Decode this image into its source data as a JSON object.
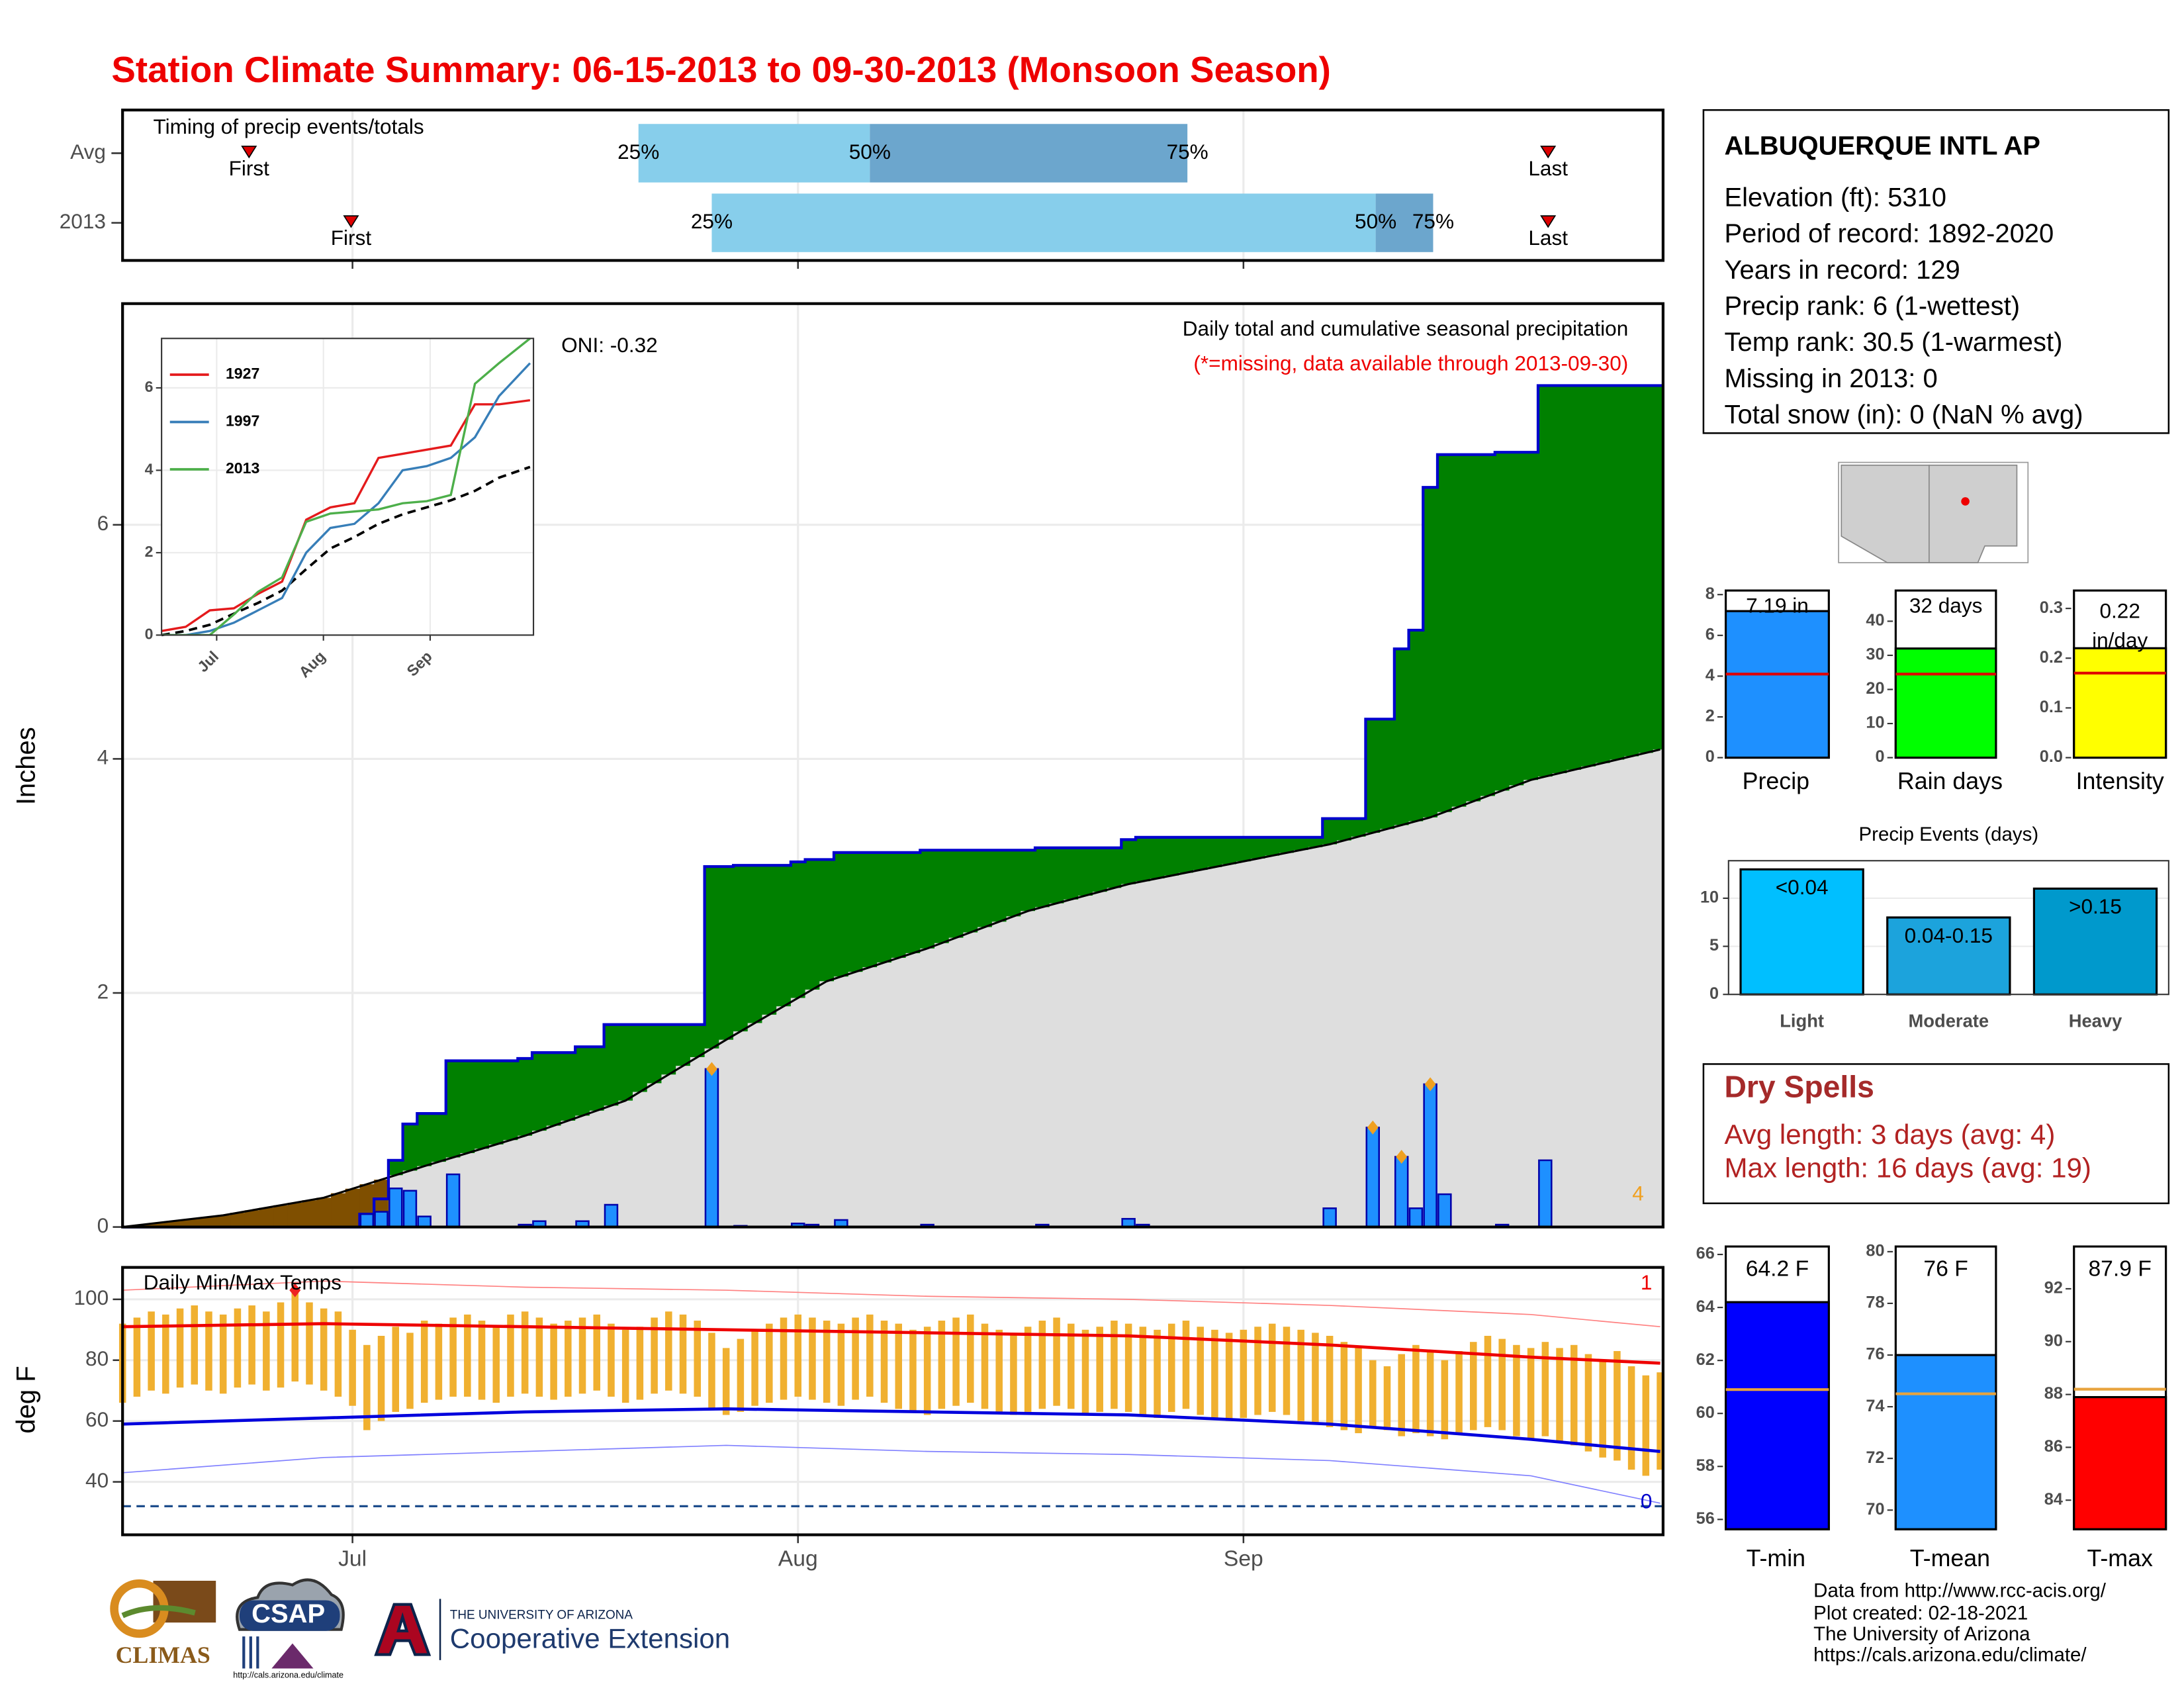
{
  "title": "Station Climate Summary: 06-15-2013 to 09-30-2013 (Monsoon Season)",
  "x_axis": {
    "xlim": [
      0,
      107.2
    ],
    "xticks": [
      {
        "value": 16,
        "label": "Jul"
      },
      {
        "value": 47,
        "label": "Aug"
      },
      {
        "value": 78,
        "label": "Sep"
      }
    ]
  },
  "chart_data": [
    {
      "type": "timing",
      "title": "Timing of precip events/totals",
      "categories": [
        "Avg",
        "2013"
      ],
      "marker_labels": [
        "First",
        "25%",
        "50%",
        "75%",
        "Last"
      ],
      "values": [
        [
          8.8,
          35.9,
          52.0,
          74.1,
          99.2
        ],
        [
          15.9,
          41.0,
          87.2,
          91.2,
          99.2
        ]
      ],
      "colors": [
        "#87ceeb",
        "#6ca6cd"
      ],
      "marker_color": "#dd0000"
    },
    {
      "type": "precip",
      "y_label": "Inches",
      "caption": "Daily total and cumulative seasonal precipitation",
      "note": "(*=missing, data available through 2013-09-30)",
      "oni": "ONI: -0.32",
      "x": [
        17,
        18,
        19,
        20,
        21,
        23,
        28,
        29,
        32,
        34,
        41,
        43,
        47,
        48,
        50,
        56,
        64,
        70,
        71,
        84,
        87,
        89,
        90,
        91,
        92,
        96,
        99
      ],
      "values": [
        0.11,
        0.13,
        0.33,
        0.31,
        0.09,
        0.45,
        0.02,
        0.05,
        0.05,
        0.19,
        1.35,
        0.01,
        0.03,
        0.02,
        0.06,
        0.02,
        0.02,
        0.07,
        0.02,
        0.16,
        0.85,
        0.6,
        0.16,
        1.22,
        0.28,
        0.02,
        0.57
      ],
      "color": "#1e90ff",
      "above_color": "#008000",
      "below_color": "#7f4f00",
      "avg_fill": "#dedede",
      "avg_x": [
        0,
        7,
        14,
        21,
        28,
        35,
        42,
        49,
        56,
        63,
        70,
        77,
        84,
        91,
        98,
        107
      ],
      "avg_values": [
        0,
        0.1,
        0.25,
        0.52,
        0.78,
        1.08,
        1.6,
        2.1,
        2.38,
        2.7,
        2.93,
        3.1,
        3.27,
        3.5,
        3.82,
        4.08
      ],
      "record_x": [
        41,
        87,
        89,
        91
      ],
      "record_count": 4,
      "record_color": "#f0a020",
      "ylim": [
        0,
        7.89
      ],
      "yticks": [
        0,
        2,
        4,
        6
      ]
    },
    {
      "type": "inset",
      "series": [
        {
          "name": "1927",
          "color": "#e41a1c",
          "values": [
            0.1,
            0.2,
            0.6,
            0.65,
            1.0,
            1.3,
            2.8,
            3.1,
            3.2,
            4.3,
            4.4,
            4.5,
            4.6,
            5.6,
            5.6,
            5.7
          ]
        },
        {
          "name": "1997",
          "color": "#377eb8",
          "values": [
            0,
            0,
            0.1,
            0.3,
            0.6,
            0.9,
            2.0,
            2.6,
            2.7,
            3.2,
            4.0,
            4.1,
            4.3,
            4.8,
            5.8,
            6.6
          ]
        },
        {
          "name": "2013",
          "color": "#4daf4a",
          "values": [
            0,
            0,
            0,
            0.5,
            1.05,
            1.4,
            2.75,
            2.95,
            3.0,
            3.05,
            3.2,
            3.25,
            3.4,
            6.1,
            6.6,
            7.2
          ]
        }
      ],
      "x": [
        0,
        7,
        14,
        21,
        28,
        35,
        42,
        49,
        56,
        63,
        70,
        77,
        84,
        91,
        98,
        107
      ],
      "reference_values": [
        0,
        0.1,
        0.25,
        0.52,
        0.78,
        1.08,
        1.6,
        2.1,
        2.38,
        2.7,
        2.93,
        3.1,
        3.27,
        3.5,
        3.82,
        4.08
      ],
      "xlim": [
        0,
        108
      ],
      "ylim": [
        0,
        7.2
      ],
      "yticks": [
        0,
        2,
        4,
        6
      ],
      "xticks": [
        {
          "value": 16,
          "label": "Jul"
        },
        {
          "value": 47,
          "label": "Aug"
        },
        {
          "value": 78,
          "label": "Sep"
        }
      ],
      "legend": "top-left"
    },
    {
      "type": "temps",
      "title": "Daily Min/Max Temps",
      "y_label": "deg F",
      "x": [
        0,
        1,
        2,
        3,
        4,
        5,
        6,
        7,
        8,
        9,
        10,
        11,
        12,
        13,
        14,
        15,
        16,
        17,
        18,
        19,
        20,
        21,
        22,
        23,
        24,
        25,
        26,
        27,
        28,
        29,
        30,
        31,
        32,
        33,
        34,
        35,
        36,
        37,
        38,
        39,
        40,
        41,
        42,
        43,
        44,
        45,
        46,
        47,
        48,
        49,
        50,
        51,
        52,
        53,
        54,
        55,
        56,
        57,
        58,
        59,
        60,
        61,
        62,
        63,
        64,
        65,
        66,
        67,
        68,
        69,
        70,
        71,
        72,
        73,
        74,
        75,
        76,
        77,
        78,
        79,
        80,
        81,
        82,
        83,
        84,
        85,
        86,
        87,
        88,
        89,
        90,
        91,
        92,
        93,
        94,
        95,
        96,
        97,
        98,
        99,
        100,
        101,
        102,
        103,
        104,
        105,
        106,
        107
      ],
      "tmax": [
        92,
        94,
        96,
        95,
        97,
        98,
        96,
        95,
        97,
        98,
        96,
        99,
        103,
        99,
        97,
        96,
        90,
        85,
        88,
        91,
        89,
        93,
        92,
        94,
        95,
        93,
        91,
        95,
        96,
        94,
        92,
        93,
        94,
        95,
        92,
        90,
        91,
        94,
        96,
        95,
        93,
        89,
        84,
        87,
        90,
        92,
        94,
        95,
        94,
        93,
        92,
        94,
        95,
        93,
        92,
        90,
        91,
        93,
        94,
        95,
        92,
        90,
        89,
        91,
        93,
        94,
        92,
        90,
        91,
        93,
        92,
        91,
        90,
        92,
        93,
        91,
        90,
        89,
        90,
        91,
        92,
        91,
        90,
        89,
        88,
        86,
        84,
        80,
        78,
        82,
        85,
        83,
        80,
        83,
        86,
        88,
        87,
        85,
        84,
        86,
        84,
        85,
        82,
        80,
        83,
        78,
        75,
        76
      ],
      "tmin": [
        66,
        68,
        70,
        69,
        71,
        72,
        70,
        69,
        71,
        72,
        70,
        71,
        73,
        72,
        70,
        68,
        65,
        57,
        60,
        63,
        64,
        66,
        67,
        68,
        68,
        67,
        66,
        68,
        69,
        68,
        67,
        68,
        69,
        70,
        68,
        66,
        67,
        69,
        70,
        69,
        68,
        64,
        62,
        63,
        65,
        66,
        67,
        68,
        67,
        66,
        65,
        67,
        68,
        66,
        64,
        63,
        62,
        64,
        65,
        66,
        64,
        63,
        62,
        63,
        64,
        65,
        64,
        62,
        63,
        64,
        63,
        62,
        61,
        63,
        64,
        62,
        61,
        60,
        61,
        62,
        63,
        62,
        60,
        59,
        58,
        57,
        56,
        58,
        57,
        55,
        56,
        55,
        54,
        56,
        57,
        58,
        57,
        55,
        54,
        55,
        53,
        52,
        50,
        48,
        47,
        44,
        42,
        44
      ],
      "bar_color": "#f0b030",
      "line_x": [
        0,
        14,
        28,
        42,
        56,
        70,
        84,
        98,
        107
      ],
      "normal_max": [
        91,
        92,
        91,
        90,
        89,
        88,
        85,
        81,
        79
      ],
      "normal_min": [
        59,
        61,
        63,
        64,
        63,
        62,
        59,
        54,
        50
      ],
      "record_max": [
        103,
        106,
        104,
        103,
        101,
        100,
        98,
        95,
        91
      ],
      "record_min": [
        43,
        48,
        50,
        52,
        50,
        49,
        47,
        42,
        33
      ],
      "record_high_x": [
        12
      ],
      "record_high_count": 1,
      "record_low_count": 0,
      "freeze": 32,
      "ylim": [
        22.6,
        110.5
      ],
      "yticks": [
        40,
        60,
        80,
        100
      ]
    },
    {
      "type": "summary_bar",
      "category": "Precip",
      "value": 7.19,
      "value_label": "7.19 in",
      "normal": 4.1,
      "color": "#1e90ff",
      "normal_color": "#e00000",
      "ylim": [
        0,
        8.2
      ],
      "yticks": [
        0,
        2,
        4,
        6,
        8
      ]
    },
    {
      "type": "summary_bar",
      "category": "Rain days",
      "value": 32,
      "value_label": "32 days",
      "normal": 24.5,
      "color": "#00ff00",
      "normal_color": "#e00000",
      "ylim": [
        0,
        49
      ],
      "yticks": [
        0,
        10,
        20,
        30,
        40
      ]
    },
    {
      "type": "summary_bar",
      "category": "Intensity",
      "value": 0.22,
      "value_label": "0.22 in/day",
      "normal": 0.17,
      "color": "#ffff00",
      "normal_color": "#e00000",
      "ylim": [
        0,
        0.336
      ],
      "yticks": [
        {
          "value": 0,
          "label": "0.0"
        },
        0.1,
        0.2,
        0.3
      ]
    },
    {
      "type": "bar",
      "title": "Precip Events (days)",
      "categories": [
        "Light",
        "Moderate",
        "Heavy"
      ],
      "values": [
        13,
        8,
        11
      ],
      "bar_labels": [
        "<0.04",
        "0.04-0.15",
        ">0.15"
      ],
      "colors": [
        "#00bfff",
        "#1ca3dc",
        "#0099cc"
      ],
      "ylim": [
        0,
        13.9
      ],
      "yticks": [
        0,
        5,
        10
      ]
    },
    {
      "type": "summary_bar",
      "category": "T-min",
      "value": 64.2,
      "value_label": "64.2 F",
      "normal": 60.9,
      "color": "#0000ff",
      "normal_color": "#e8a33d",
      "ylim": [
        55.63,
        66.3
      ],
      "yticks": [
        56,
        58,
        60,
        62,
        64,
        66
      ]
    },
    {
      "type": "summary_bar",
      "category": "T-mean",
      "value": 76,
      "value_label": "76 F",
      "normal": 74.5,
      "color": "#1e90ff",
      "normal_color": "#e8a33d",
      "ylim": [
        69.26,
        80.2
      ],
      "yticks": [
        70,
        72,
        74,
        76,
        78,
        80
      ]
    },
    {
      "type": "summary_bar",
      "category": "T-max",
      "value": 87.9,
      "value_label": "87.9 F",
      "normal": 88.2,
      "color": "#ff0000",
      "normal_color": "#e8a33d",
      "ylim": [
        82.9,
        93.6
      ],
      "yticks": [
        84,
        86,
        88,
        90,
        92
      ]
    }
  ],
  "station": {
    "name": "ALBUQUERQUE INTL AP",
    "lines": [
      "Elevation (ft): 5310",
      "Period of record: 1892-2020",
      "Years in record: 129",
      "Precip rank: 6 (1-wettest)",
      "Temp rank: 30.5 (1-warmest)",
      "Missing in 2013: 0",
      "Total snow (in): 0 (NaN % avg)"
    ]
  },
  "dry_spells": {
    "title": "Dry Spells",
    "lines": [
      "Avg length: 3 days (avg: 4)",
      "Max length: 16 days (avg: 19)"
    ]
  },
  "footer": [
    "Data from http://www.rcc-acis.org/",
    "Plot created: 02-18-2021",
    "The University of Arizona",
    "https://cals.arizona.edu/climate/"
  ],
  "logos": {
    "climas": "CLIMAS",
    "csap": "CSAP",
    "csap_url": "http://cals.arizona.edu/climate",
    "ua": "THE UNIVERSITY OF ARIZONA",
    "extension": "Cooperative Extension"
  }
}
